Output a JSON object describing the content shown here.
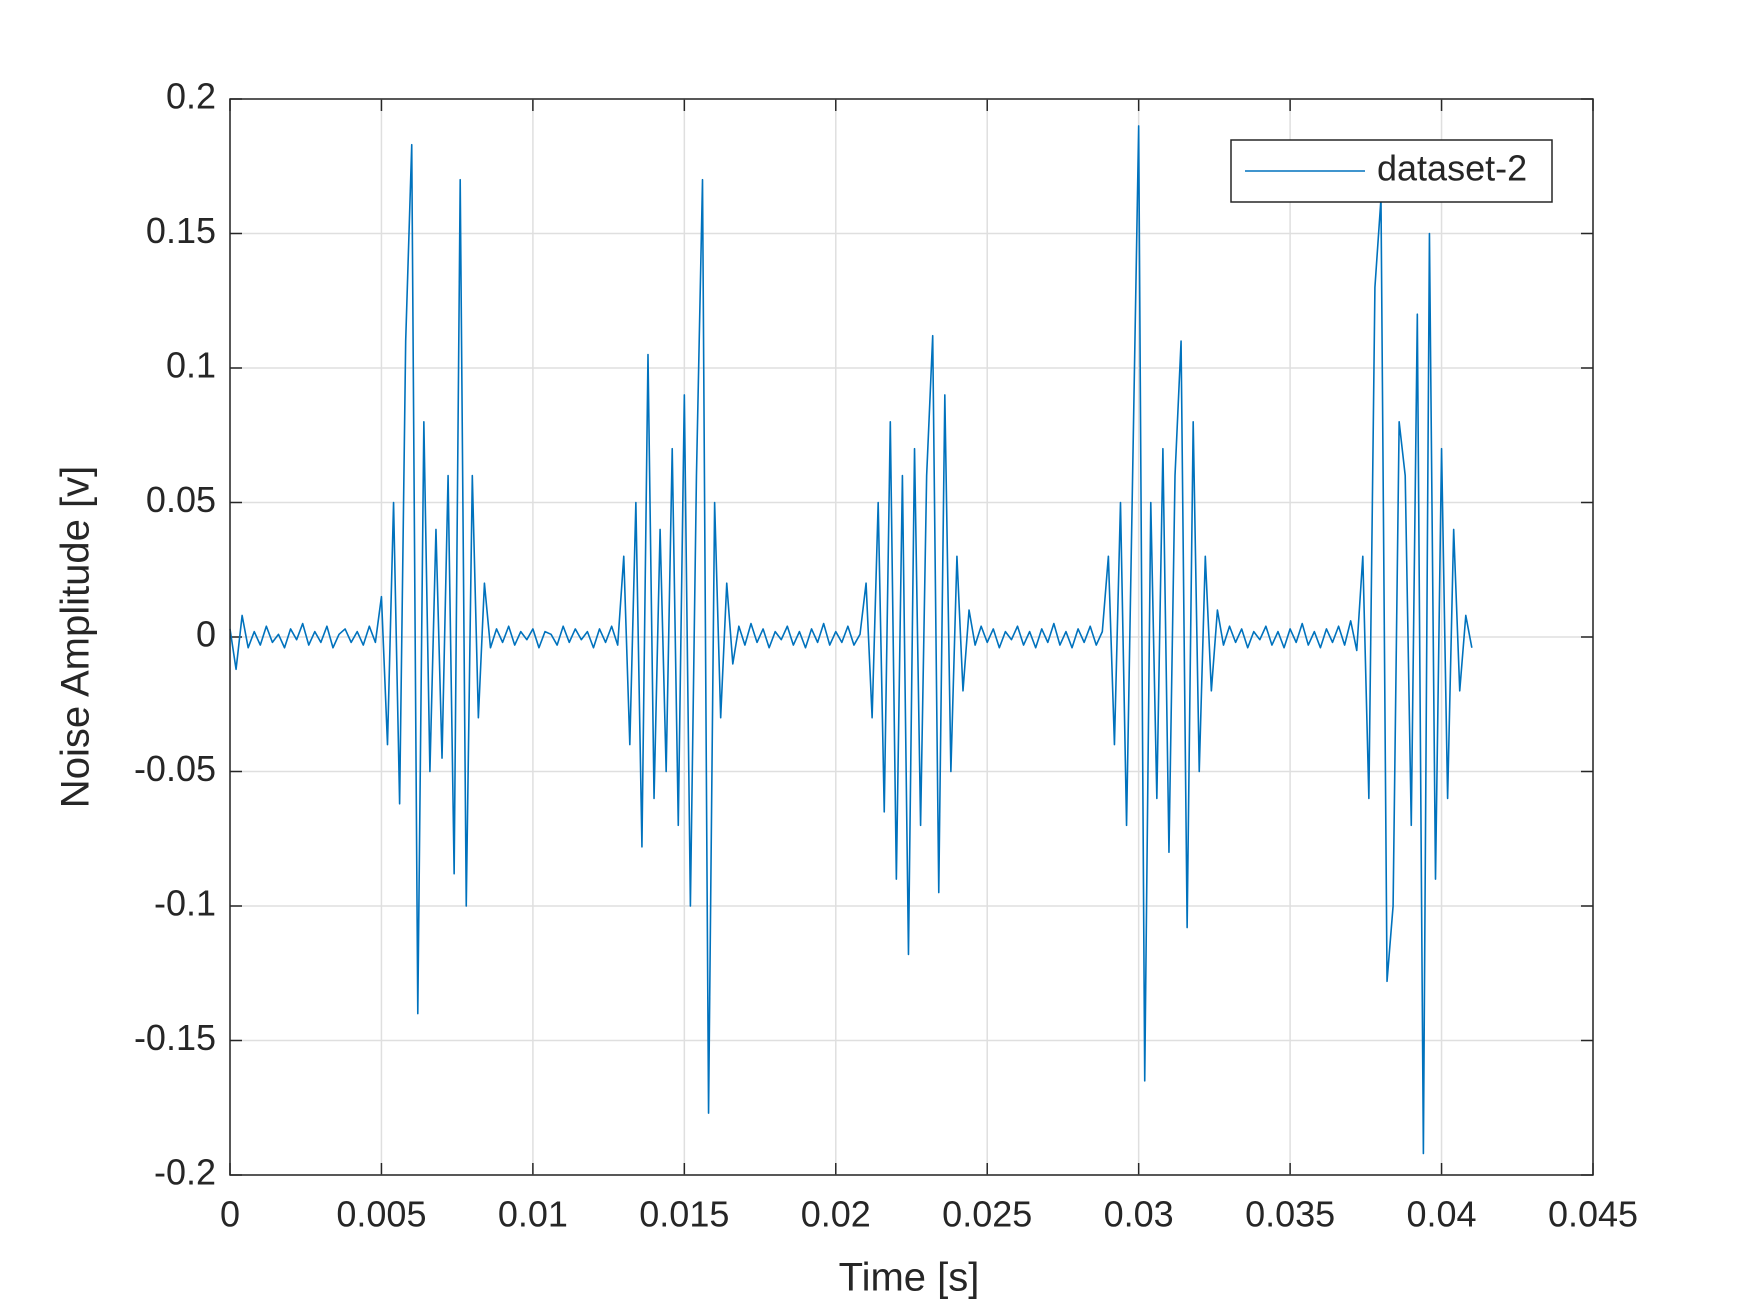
{
  "chart_data": {
    "type": "line",
    "xlabel": "Time [s]",
    "ylabel": "Noise Amplitude [v]",
    "xlim": [
      0,
      0.045
    ],
    "xticks": [
      0,
      0.005,
      0.01,
      0.015,
      0.02,
      0.025,
      0.03,
      0.035,
      0.04,
      0.045
    ],
    "ylim": [
      -0.2,
      0.2
    ],
    "yticks": [
      -0.2,
      -0.15,
      -0.1,
      -0.05,
      0,
      0.05,
      0.1,
      0.15,
      0.2
    ],
    "grid": true,
    "legend": "upper right",
    "x": [
      0,
      0.0002,
      0.0004,
      0.0006,
      0.0008,
      0.001,
      0.0012,
      0.0014,
      0.0016,
      0.0018,
      0.002,
      0.0022,
      0.0024,
      0.0026,
      0.0028,
      0.003,
      0.0032,
      0.0034,
      0.0036,
      0.0038,
      0.004,
      0.0042,
      0.0044,
      0.0046,
      0.0048,
      0.005,
      0.0052,
      0.0054,
      0.0056,
      0.0058,
      0.006,
      0.0062,
      0.0064,
      0.0066,
      0.0068,
      0.007,
      0.0072,
      0.0074,
      0.0076,
      0.0078,
      0.008,
      0.0082,
      0.0084,
      0.0086,
      0.0088,
      0.009,
      0.0092,
      0.0094,
      0.0096,
      0.0098,
      0.01,
      0.0102,
      0.0104,
      0.0106,
      0.0108,
      0.011,
      0.0112,
      0.0114,
      0.0116,
      0.0118,
      0.012,
      0.0122,
      0.0124,
      0.0126,
      0.0128,
      0.013,
      0.0132,
      0.0134,
      0.0136,
      0.0138,
      0.014,
      0.0142,
      0.0144,
      0.0146,
      0.0148,
      0.015,
      0.0152,
      0.0154,
      0.0156,
      0.0158,
      0.016,
      0.0162,
      0.0164,
      0.0166,
      0.0168,
      0.017,
      0.0172,
      0.0174,
      0.0176,
      0.0178,
      0.018,
      0.0182,
      0.0184,
      0.0186,
      0.0188,
      0.019,
      0.0192,
      0.0194,
      0.0196,
      0.0198,
      0.02,
      0.0202,
      0.0204,
      0.0206,
      0.0208,
      0.021,
      0.0212,
      0.0214,
      0.0216,
      0.0218,
      0.022,
      0.0222,
      0.0224,
      0.0226,
      0.0228,
      0.023,
      0.0232,
      0.0234,
      0.0236,
      0.0238,
      0.024,
      0.0242,
      0.0244,
      0.0246,
      0.0248,
      0.025,
      0.0252,
      0.0254,
      0.0256,
      0.0258,
      0.026,
      0.0262,
      0.0264,
      0.0266,
      0.0268,
      0.027,
      0.0272,
      0.0274,
      0.0276,
      0.0278,
      0.028,
      0.0282,
      0.0284,
      0.0286,
      0.0288,
      0.029,
      0.0292,
      0.0294,
      0.0296,
      0.0298,
      0.03,
      0.0302,
      0.0304,
      0.0306,
      0.0308,
      0.031,
      0.0312,
      0.0314,
      0.0316,
      0.0318,
      0.032,
      0.0322,
      0.0324,
      0.0326,
      0.0328,
      0.033,
      0.0332,
      0.0334,
      0.0336,
      0.0338,
      0.034,
      0.0342,
      0.0344,
      0.0346,
      0.0348,
      0.035,
      0.0352,
      0.0354,
      0.0356,
      0.0358,
      0.036,
      0.0362,
      0.0364,
      0.0366,
      0.0368,
      0.037,
      0.0372,
      0.0374,
      0.0376,
      0.0378,
      0.038,
      0.0382,
      0.0384,
      0.0386,
      0.0388,
      0.039,
      0.0392,
      0.0394,
      0.0396,
      0.0398,
      0.04,
      0.0402,
      0.0404,
      0.0406,
      0.0408,
      0.041
    ],
    "series": [
      {
        "name": "dataset-2",
        "color": "#0072bd",
        "values": [
          0.003,
          -0.012,
          0.008,
          -0.004,
          0.002,
          -0.003,
          0.004,
          -0.002,
          0.001,
          -0.004,
          0.003,
          -0.001,
          0.005,
          -0.003,
          0.002,
          -0.002,
          0.004,
          -0.004,
          0.001,
          0.003,
          -0.002,
          0.002,
          -0.003,
          0.004,
          -0.002,
          0.015,
          -0.04,
          0.05,
          -0.062,
          0.11,
          0.183,
          -0.14,
          0.08,
          -0.05,
          0.04,
          -0.045,
          0.06,
          -0.088,
          0.17,
          -0.1,
          0.06,
          -0.03,
          0.02,
          -0.004,
          0.003,
          -0.002,
          0.004,
          -0.003,
          0.002,
          -0.001,
          0.003,
          -0.004,
          0.002,
          0.001,
          -0.003,
          0.004,
          -0.002,
          0.003,
          -0.001,
          0.002,
          -0.004,
          0.003,
          -0.002,
          0.004,
          -0.003,
          0.03,
          -0.04,
          0.05,
          -0.078,
          0.105,
          -0.06,
          0.04,
          -0.05,
          0.07,
          -0.07,
          0.09,
          -0.1,
          0.06,
          0.17,
          -0.177,
          0.05,
          -0.03,
          0.02,
          -0.01,
          0.004,
          -0.003,
          0.005,
          -0.002,
          0.003,
          -0.004,
          0.002,
          -0.001,
          0.004,
          -0.003,
          0.002,
          -0.004,
          0.003,
          -0.002,
          0.005,
          -0.003,
          0.002,
          -0.002,
          0.004,
          -0.003,
          0.001,
          0.02,
          -0.03,
          0.05,
          -0.065,
          0.08,
          -0.09,
          0.06,
          -0.118,
          0.07,
          -0.07,
          0.06,
          0.112,
          -0.095,
          0.09,
          -0.05,
          0.03,
          -0.02,
          0.01,
          -0.003,
          0.004,
          -0.002,
          0.003,
          -0.004,
          0.002,
          -0.001,
          0.004,
          -0.003,
          0.002,
          -0.004,
          0.003,
          -0.002,
          0.005,
          -0.003,
          0.002,
          -0.004,
          0.003,
          -0.002,
          0.004,
          -0.003,
          0.002,
          0.03,
          -0.04,
          0.05,
          -0.07,
          0.06,
          0.19,
          -0.165,
          0.05,
          -0.06,
          0.07,
          -0.08,
          0.06,
          0.11,
          -0.108,
          0.08,
          -0.05,
          0.03,
          -0.02,
          0.01,
          -0.003,
          0.004,
          -0.002,
          0.003,
          -0.004,
          0.002,
          -0.001,
          0.004,
          -0.003,
          0.002,
          -0.004,
          0.003,
          -0.002,
          0.005,
          -0.003,
          0.002,
          -0.004,
          0.003,
          -0.002,
          0.004,
          -0.003,
          0.006,
          -0.005,
          0.03,
          -0.06,
          0.13,
          0.163,
          -0.128,
          -0.1,
          0.08,
          0.06,
          -0.07,
          0.12,
          -0.192,
          0.15,
          -0.09,
          0.07,
          -0.06,
          0.04,
          -0.02,
          0.008,
          -0.004
        ]
      }
    ]
  }
}
